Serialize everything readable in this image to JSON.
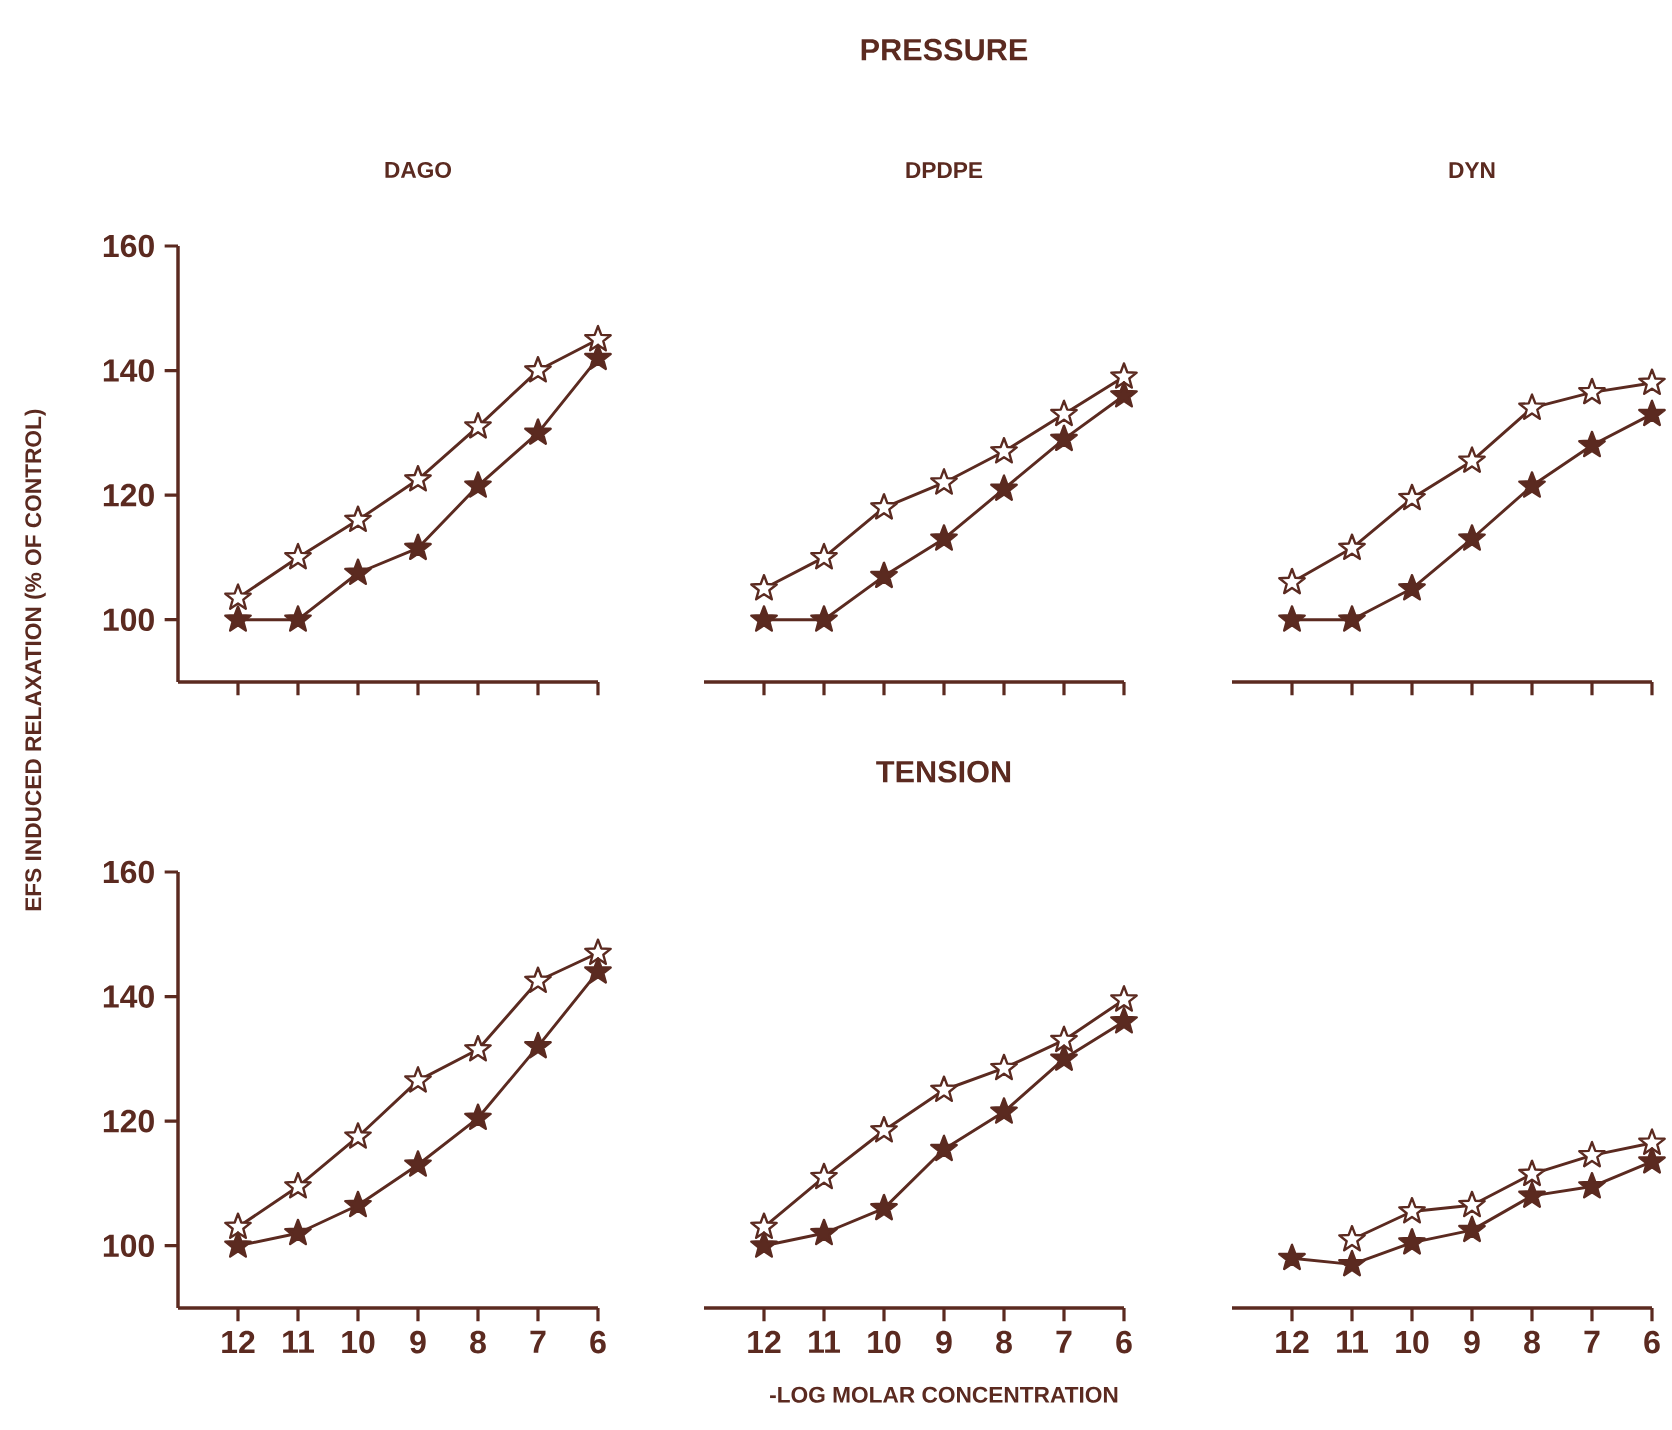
{
  "chart_data": [
    {
      "type": "line",
      "title": "DAGO",
      "ylabel": "EFS INDUCED RELAXATION (% OF CONTROL)",
      "x": [
        12,
        11,
        10,
        9,
        8,
        7,
        6
      ],
      "xlim": [
        13,
        6
      ],
      "xticks": [
        12,
        11,
        10,
        9,
        8,
        7,
        6
      ],
      "ylim": [
        90,
        160
      ],
      "yticks": [
        100,
        120,
        140,
        160
      ],
      "tick_labels": "y",
      "marker": "star",
      "series": [
        {
          "color": "#5b2a20",
          "values": [
            103.5,
            110,
            116,
            122.5,
            131,
            140,
            145
          ]
        },
        {
          "color": "#5b2a20",
          "values": [
            100,
            100,
            107.5,
            111.5,
            121.5,
            130,
            142
          ]
        }
      ]
    },
    {
      "type": "line",
      "title": "DPDPE",
      "annotations": [
        "PRESSURE"
      ],
      "x": [
        12,
        11,
        10,
        9,
        8,
        7,
        6
      ],
      "xlim": [
        13,
        6
      ],
      "xticks": [
        12,
        11,
        10,
        9,
        8,
        7,
        6
      ],
      "ylim": [
        90,
        160
      ],
      "yticks": [
        100,
        120,
        140,
        160
      ],
      "tick_labels": false,
      "marker": "star",
      "series": [
        {
          "color": "#5b2a20",
          "values": [
            105,
            110,
            118,
            122,
            127,
            133,
            139
          ]
        },
        {
          "color": "#5b2a20",
          "values": [
            100,
            100,
            107,
            113,
            121,
            129,
            136
          ]
        }
      ]
    },
    {
      "type": "line",
      "title": "DYN",
      "x": [
        12,
        11,
        10,
        9,
        8,
        7,
        6
      ],
      "xlim": [
        13,
        6
      ],
      "xticks": [
        12,
        11,
        10,
        9,
        8,
        7,
        6
      ],
      "ylim": [
        90,
        160
      ],
      "yticks": [
        100,
        120,
        140,
        160
      ],
      "tick_labels": false,
      "marker": "star",
      "series": [
        {
          "color": "#5b2a20",
          "values": [
            106,
            111.5,
            119.5,
            125.5,
            134,
            136.5,
            138
          ]
        },
        {
          "color": "#5b2a20",
          "values": [
            100,
            100,
            105,
            113,
            121.5,
            128,
            133
          ]
        }
      ]
    },
    {
      "type": "line",
      "x": [
        12,
        11,
        10,
        9,
        8,
        7,
        6
      ],
      "xlim": [
        13,
        6
      ],
      "xticks": [
        12,
        11,
        10,
        9,
        8,
        7,
        6
      ],
      "ylim": [
        90,
        160
      ],
      "yticks": [
        100,
        120,
        140,
        160
      ],
      "marker": "star",
      "series": [
        {
          "color": "#5b2a20",
          "values": [
            103,
            109.5,
            117.5,
            126.5,
            131.5,
            142.5,
            147
          ]
        },
        {
          "color": "#5b2a20",
          "values": [
            100,
            102,
            106.5,
            113,
            120.5,
            132,
            144
          ]
        }
      ]
    },
    {
      "type": "line",
      "xlabel": "-LOG MOLAR CONCENTRATION",
      "annotations": [
        "TENSION"
      ],
      "x": [
        12,
        11,
        10,
        9,
        8,
        7,
        6
      ],
      "xlim": [
        13,
        6
      ],
      "xticks": [
        12,
        11,
        10,
        9,
        8,
        7,
        6
      ],
      "ylim": [
        90,
        160
      ],
      "yticks": [
        100,
        120,
        140,
        160
      ],
      "tick_labels": "x",
      "marker": "star",
      "series": [
        {
          "color": "#5b2a20",
          "values": [
            103,
            111,
            118.5,
            125,
            128.5,
            133,
            139.5
          ]
        },
        {
          "color": "#5b2a20",
          "values": [
            100,
            102,
            106,
            115.5,
            121.5,
            130,
            136
          ]
        }
      ]
    },
    {
      "type": "line",
      "x": [
        12,
        11,
        10,
        9,
        8,
        7,
        6
      ],
      "xlim": [
        13,
        6
      ],
      "xticks": [
        12,
        11,
        10,
        9,
        8,
        7,
        6
      ],
      "ylim": [
        90,
        160
      ],
      "yticks": [
        100,
        120,
        140,
        160
      ],
      "tick_labels": "x",
      "marker": "star",
      "series": [
        {
          "color": "#5b2a20",
          "values": [
            null,
            101,
            105.5,
            106.5,
            111.5,
            114.5,
            116.5
          ]
        },
        {
          "color": "#5b2a20",
          "values": [
            98,
            97,
            100.5,
            102.5,
            108,
            109.5,
            113.5
          ]
        }
      ]
    }
  ]
}
